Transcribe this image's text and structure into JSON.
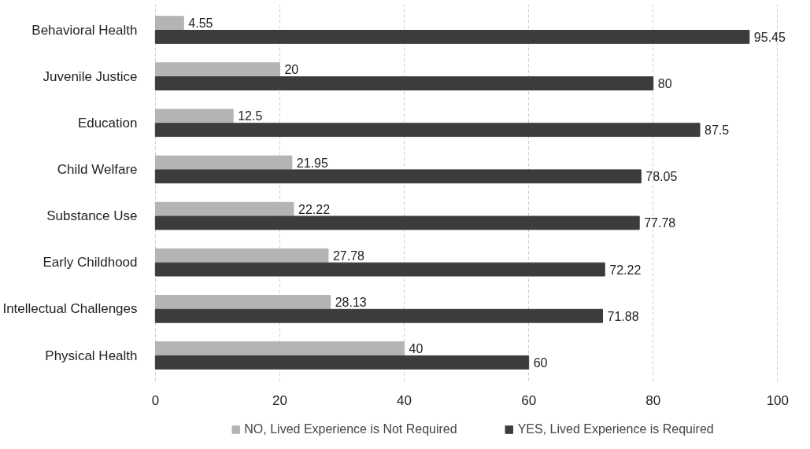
{
  "chart_data": {
    "type": "bar",
    "orientation": "horizontal",
    "categories": [
      "Behavioral Health",
      "Juvenile Justice",
      "Education",
      "Child Welfare",
      "Substance Use",
      "Early Childhood",
      "Intellectual Challenges",
      "Physical Health"
    ],
    "series": [
      {
        "name": "NO, Lived Experience is Not Required",
        "color": "#b4b4b4",
        "values": [
          4.55,
          20,
          12.5,
          21.95,
          22.22,
          27.78,
          28.13,
          40
        ]
      },
      {
        "name": "YES, Lived Experience is Required",
        "color": "#3c3c3c",
        "values": [
          95.45,
          80,
          87.5,
          78.05,
          77.78,
          72.22,
          71.88,
          60
        ]
      }
    ],
    "xlim": [
      0,
      100
    ],
    "xticks": [
      0,
      20,
      40,
      60,
      80,
      100
    ],
    "grid": "x",
    "legend": "bottom",
    "data_labels": true
  }
}
